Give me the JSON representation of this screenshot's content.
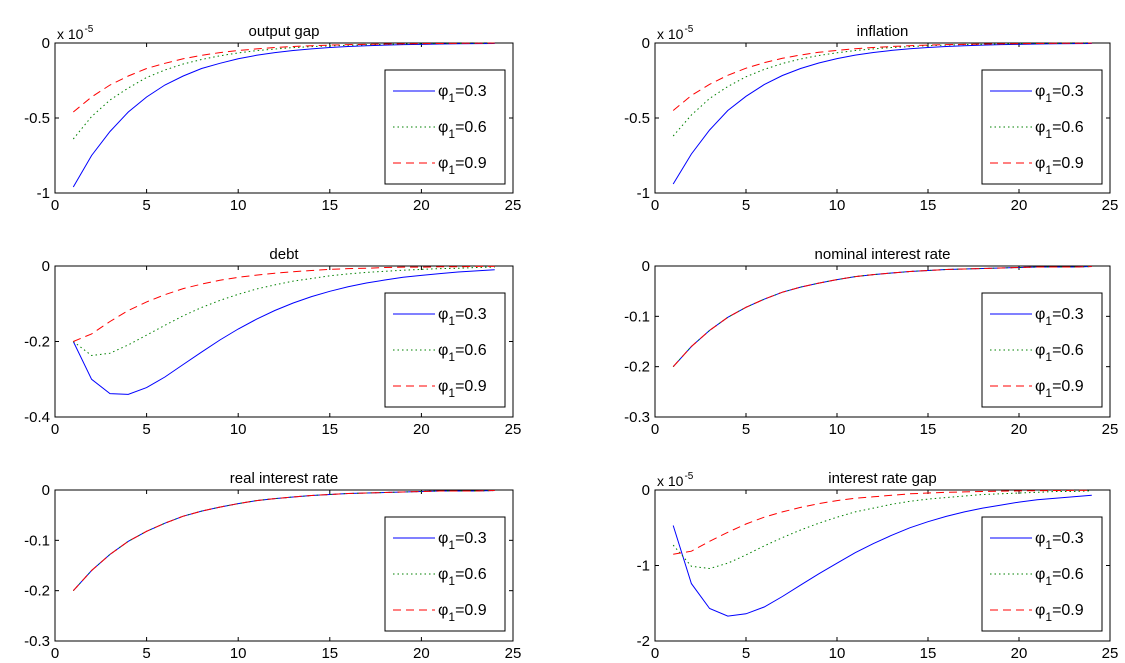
{
  "legend_prefix": "φ",
  "legend_subscript": "1",
  "chart_data": [
    {
      "type": "line",
      "title": "output gap",
      "exponent_base": "x 10",
      "exponent_power": "-5",
      "xlim": [
        0,
        25
      ],
      "ylim": [
        -1,
        0
      ],
      "xticks": [
        0,
        5,
        10,
        15,
        20,
        25
      ],
      "yticks": [
        -1,
        -0.5,
        0
      ],
      "yticklabels": [
        "-1",
        "-0.5",
        "0"
      ],
      "legend_position": "right",
      "grid": false,
      "x": [
        1,
        2,
        3,
        4,
        5,
        6,
        7,
        8,
        9,
        10,
        11,
        12,
        13,
        14,
        15,
        16,
        17,
        18,
        19,
        20,
        21,
        22,
        23,
        24
      ],
      "series": [
        {
          "name": "=0.3",
          "color": "#0000ff",
          "dash": "solid",
          "values": [
            -0.96,
            -0.75,
            -0.59,
            -0.46,
            -0.36,
            -0.28,
            -0.22,
            -0.17,
            -0.135,
            -0.105,
            -0.082,
            -0.064,
            -0.05,
            -0.039,
            -0.03,
            -0.023,
            -0.018,
            -0.014,
            -0.011,
            -0.009,
            -0.007,
            -0.005,
            -0.004,
            -0.003
          ]
        },
        {
          "name": "=0.6",
          "color": "#008000",
          "dash": "dotted",
          "values": [
            -0.64,
            -0.49,
            -0.38,
            -0.3,
            -0.23,
            -0.18,
            -0.14,
            -0.11,
            -0.085,
            -0.066,
            -0.051,
            -0.04,
            -0.031,
            -0.024,
            -0.019,
            -0.015,
            -0.012,
            -0.009,
            -0.007,
            -0.005,
            -0.004,
            -0.003,
            -0.002,
            -0.002
          ]
        },
        {
          "name": "=0.9",
          "color": "#ff0000",
          "dash": "dashed",
          "values": [
            -0.46,
            -0.36,
            -0.28,
            -0.22,
            -0.17,
            -0.135,
            -0.105,
            -0.082,
            -0.064,
            -0.05,
            -0.039,
            -0.03,
            -0.023,
            -0.018,
            -0.014,
            -0.011,
            -0.009,
            -0.007,
            -0.005,
            -0.004,
            -0.003,
            -0.002,
            -0.002,
            -0.001
          ]
        }
      ]
    },
    {
      "type": "line",
      "title": "inflation",
      "exponent_base": "x 10",
      "exponent_power": "-5",
      "xlim": [
        0,
        25
      ],
      "ylim": [
        -1,
        0
      ],
      "xticks": [
        0,
        5,
        10,
        15,
        20,
        25
      ],
      "yticks": [
        -1,
        -0.5,
        0
      ],
      "yticklabels": [
        "-1",
        "-0.5",
        "0"
      ],
      "legend_position": "right",
      "grid": false,
      "x": [
        1,
        2,
        3,
        4,
        5,
        6,
        7,
        8,
        9,
        10,
        11,
        12,
        13,
        14,
        15,
        16,
        17,
        18,
        19,
        20,
        21,
        22,
        23,
        24
      ],
      "series": [
        {
          "name": "=0.3",
          "color": "#0000ff",
          "dash": "solid",
          "values": [
            -0.94,
            -0.74,
            -0.58,
            -0.45,
            -0.355,
            -0.277,
            -0.217,
            -0.17,
            -0.133,
            -0.104,
            -0.081,
            -0.063,
            -0.049,
            -0.038,
            -0.03,
            -0.023,
            -0.018,
            -0.014,
            -0.011,
            -0.009,
            -0.007,
            -0.005,
            -0.004,
            -0.003
          ]
        },
        {
          "name": "=0.6",
          "color": "#008000",
          "dash": "dotted",
          "values": [
            -0.62,
            -0.48,
            -0.37,
            -0.29,
            -0.225,
            -0.176,
            -0.137,
            -0.107,
            -0.083,
            -0.065,
            -0.05,
            -0.039,
            -0.03,
            -0.024,
            -0.018,
            -0.014,
            -0.011,
            -0.009,
            -0.007,
            -0.005,
            -0.004,
            -0.003,
            -0.002,
            -0.002
          ]
        },
        {
          "name": "=0.9",
          "color": "#ff0000",
          "dash": "dashed",
          "values": [
            -0.45,
            -0.35,
            -0.275,
            -0.215,
            -0.168,
            -0.131,
            -0.102,
            -0.08,
            -0.062,
            -0.049,
            -0.038,
            -0.03,
            -0.023,
            -0.018,
            -0.014,
            -0.011,
            -0.009,
            -0.007,
            -0.005,
            -0.004,
            -0.003,
            -0.002,
            -0.002,
            -0.001
          ]
        }
      ]
    },
    {
      "type": "line",
      "title": "debt",
      "exponent_base": "",
      "exponent_power": "",
      "xlim": [
        0,
        25
      ],
      "ylim": [
        -0.4,
        0
      ],
      "xticks": [
        0,
        5,
        10,
        15,
        20,
        25
      ],
      "yticks": [
        -0.4,
        -0.2,
        0
      ],
      "yticklabels": [
        "-0.4",
        "-0.2",
        "0"
      ],
      "legend_position": "right",
      "grid": false,
      "x": [
        1,
        2,
        3,
        4,
        5,
        6,
        7,
        8,
        9,
        10,
        11,
        12,
        13,
        14,
        15,
        16,
        17,
        18,
        19,
        20,
        21,
        22,
        23,
        24
      ],
      "series": [
        {
          "name": "=0.3",
          "color": "#0000ff",
          "dash": "solid",
          "values": [
            -0.2,
            -0.3,
            -0.338,
            -0.34,
            -0.322,
            -0.294,
            -0.261,
            -0.228,
            -0.196,
            -0.167,
            -0.141,
            -0.118,
            -0.098,
            -0.081,
            -0.067,
            -0.055,
            -0.045,
            -0.037,
            -0.03,
            -0.025,
            -0.02,
            -0.016,
            -0.013,
            -0.01
          ]
        },
        {
          "name": "=0.6",
          "color": "#008000",
          "dash": "dotted",
          "values": [
            -0.2,
            -0.237,
            -0.231,
            -0.209,
            -0.183,
            -0.157,
            -0.132,
            -0.11,
            -0.091,
            -0.075,
            -0.061,
            -0.05,
            -0.04,
            -0.033,
            -0.026,
            -0.021,
            -0.017,
            -0.014,
            -0.011,
            -0.009,
            -0.007,
            -0.006,
            -0.004,
            -0.003
          ]
        },
        {
          "name": "=0.9",
          "color": "#ff0000",
          "dash": "dashed",
          "values": [
            -0.2,
            -0.18,
            -0.147,
            -0.118,
            -0.095,
            -0.076,
            -0.06,
            -0.048,
            -0.038,
            -0.03,
            -0.024,
            -0.019,
            -0.015,
            -0.012,
            -0.009,
            -0.007,
            -0.006,
            -0.004,
            -0.003,
            -0.003,
            -0.002,
            -0.002,
            -0.001,
            -0.001
          ]
        }
      ]
    },
    {
      "type": "line",
      "title": "nominal interest rate",
      "exponent_base": "",
      "exponent_power": "",
      "xlim": [
        0,
        25
      ],
      "ylim": [
        -0.3,
        0
      ],
      "xticks": [
        0,
        5,
        10,
        15,
        20,
        25
      ],
      "yticks": [
        -0.3,
        -0.2,
        -0.1,
        0
      ],
      "yticklabels": [
        "-0.3",
        "-0.2",
        "-0.1",
        "0"
      ],
      "legend_position": "right",
      "grid": false,
      "x": [
        1,
        2,
        3,
        4,
        5,
        6,
        7,
        8,
        9,
        10,
        11,
        12,
        13,
        14,
        15,
        16,
        17,
        18,
        19,
        20,
        21,
        22,
        23,
        24
      ],
      "series": [
        {
          "name": "=0.3",
          "color": "#0000ff",
          "dash": "solid",
          "values": [
            -0.2,
            -0.16,
            -0.128,
            -0.102,
            -0.082,
            -0.066,
            -0.052,
            -0.042,
            -0.034,
            -0.027,
            -0.021,
            -0.017,
            -0.014,
            -0.011,
            -0.009,
            -0.007,
            -0.006,
            -0.005,
            -0.004,
            -0.003,
            -0.002,
            -0.002,
            -0.002,
            -0.001
          ]
        },
        {
          "name": "=0.6",
          "color": "#008000",
          "dash": "dotted",
          "values": [
            -0.2,
            -0.16,
            -0.128,
            -0.102,
            -0.082,
            -0.066,
            -0.052,
            -0.042,
            -0.034,
            -0.027,
            -0.021,
            -0.017,
            -0.014,
            -0.011,
            -0.009,
            -0.007,
            -0.006,
            -0.005,
            -0.004,
            -0.003,
            -0.002,
            -0.002,
            -0.002,
            -0.001
          ]
        },
        {
          "name": "=0.9",
          "color": "#ff0000",
          "dash": "dashed",
          "values": [
            -0.2,
            -0.16,
            -0.128,
            -0.102,
            -0.082,
            -0.066,
            -0.052,
            -0.042,
            -0.034,
            -0.027,
            -0.021,
            -0.017,
            -0.014,
            -0.011,
            -0.009,
            -0.007,
            -0.006,
            -0.005,
            -0.004,
            -0.003,
            -0.002,
            -0.002,
            -0.002,
            -0.001
          ]
        }
      ]
    },
    {
      "type": "line",
      "title": "real interest rate",
      "exponent_base": "",
      "exponent_power": "",
      "xlim": [
        0,
        25
      ],
      "ylim": [
        -0.3,
        0
      ],
      "xticks": [
        0,
        5,
        10,
        15,
        20,
        25
      ],
      "yticks": [
        -0.3,
        -0.2,
        -0.1,
        0
      ],
      "yticklabels": [
        "-0.3",
        "-0.2",
        "-0.1",
        "0"
      ],
      "legend_position": "right",
      "grid": false,
      "x": [
        1,
        2,
        3,
        4,
        5,
        6,
        7,
        8,
        9,
        10,
        11,
        12,
        13,
        14,
        15,
        16,
        17,
        18,
        19,
        20,
        21,
        22,
        23,
        24
      ],
      "series": [
        {
          "name": "=0.3",
          "color": "#0000ff",
          "dash": "solid",
          "values": [
            -0.2,
            -0.16,
            -0.128,
            -0.102,
            -0.082,
            -0.066,
            -0.052,
            -0.042,
            -0.034,
            -0.027,
            -0.021,
            -0.017,
            -0.014,
            -0.011,
            -0.009,
            -0.007,
            -0.006,
            -0.005,
            -0.004,
            -0.003,
            -0.002,
            -0.002,
            -0.002,
            -0.001
          ]
        },
        {
          "name": "=0.6",
          "color": "#008000",
          "dash": "dotted",
          "values": [
            -0.2,
            -0.16,
            -0.128,
            -0.102,
            -0.082,
            -0.066,
            -0.052,
            -0.042,
            -0.034,
            -0.027,
            -0.021,
            -0.017,
            -0.014,
            -0.011,
            -0.009,
            -0.007,
            -0.006,
            -0.005,
            -0.004,
            -0.003,
            -0.002,
            -0.002,
            -0.002,
            -0.001
          ]
        },
        {
          "name": "=0.9",
          "color": "#ff0000",
          "dash": "dashed",
          "values": [
            -0.2,
            -0.16,
            -0.128,
            -0.102,
            -0.082,
            -0.066,
            -0.052,
            -0.042,
            -0.034,
            -0.027,
            -0.021,
            -0.017,
            -0.014,
            -0.011,
            -0.009,
            -0.007,
            -0.006,
            -0.005,
            -0.004,
            -0.003,
            -0.002,
            -0.002,
            -0.002,
            -0.001
          ]
        }
      ]
    },
    {
      "type": "line",
      "title": "interest rate gap",
      "exponent_base": "x 10",
      "exponent_power": "-5",
      "xlim": [
        0,
        25
      ],
      "ylim": [
        -2,
        0
      ],
      "xticks": [
        0,
        5,
        10,
        15,
        20,
        25
      ],
      "yticks": [
        -2,
        -1,
        0
      ],
      "yticklabels": [
        "-2",
        "-1",
        "0"
      ],
      "legend_position": "right",
      "grid": false,
      "x": [
        1,
        2,
        3,
        4,
        5,
        6,
        7,
        8,
        9,
        10,
        11,
        12,
        13,
        14,
        15,
        16,
        17,
        18,
        19,
        20,
        21,
        22,
        23,
        24
      ],
      "series": [
        {
          "name": "=0.3",
          "color": "#0000ff",
          "dash": "solid",
          "values": [
            -0.47,
            -1.24,
            -1.57,
            -1.67,
            -1.64,
            -1.55,
            -1.41,
            -1.26,
            -1.11,
            -0.97,
            -0.83,
            -0.71,
            -0.6,
            -0.5,
            -0.42,
            -0.35,
            -0.29,
            -0.24,
            -0.2,
            -0.16,
            -0.13,
            -0.11,
            -0.09,
            -0.07
          ]
        },
        {
          "name": "=0.6",
          "color": "#008000",
          "dash": "dotted",
          "values": [
            -0.73,
            -1.01,
            -1.04,
            -0.97,
            -0.86,
            -0.74,
            -0.63,
            -0.53,
            -0.44,
            -0.36,
            -0.29,
            -0.24,
            -0.19,
            -0.15,
            -0.12,
            -0.1,
            -0.08,
            -0.06,
            -0.05,
            -0.04,
            -0.03,
            -0.02,
            -0.02,
            -0.01
          ]
        },
        {
          "name": "=0.9",
          "color": "#ff0000",
          "dash": "dashed",
          "values": [
            -0.85,
            -0.81,
            -0.68,
            -0.56,
            -0.45,
            -0.36,
            -0.29,
            -0.23,
            -0.18,
            -0.14,
            -0.11,
            -0.09,
            -0.07,
            -0.05,
            -0.04,
            -0.03,
            -0.025,
            -0.02,
            -0.015,
            -0.012,
            -0.009,
            -0.007,
            -0.005,
            -0.004
          ]
        }
      ]
    }
  ]
}
